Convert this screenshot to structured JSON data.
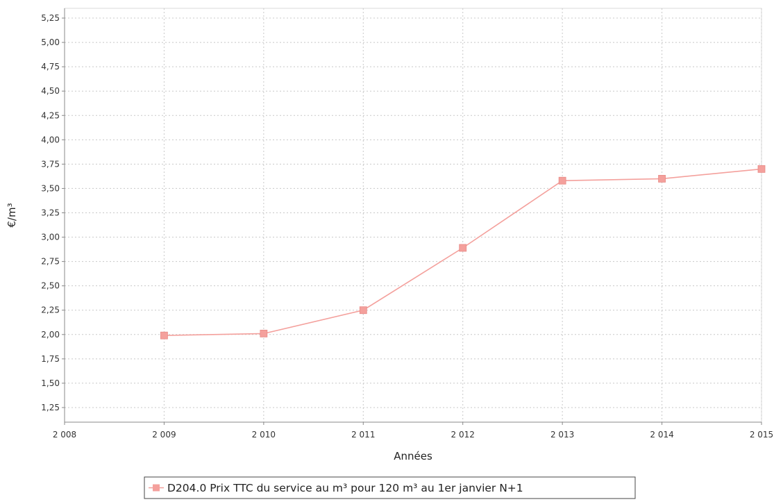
{
  "chart_data": {
    "type": "line",
    "title": "",
    "xlabel": "Années",
    "ylabel": "€/m³",
    "xlim": [
      2008,
      2015
    ],
    "ylim": [
      1.1,
      5.35
    ],
    "grid": true,
    "legend_position": "bottom",
    "x_ticks": [
      {
        "value": 2008,
        "label": "2 008"
      },
      {
        "value": 2009,
        "label": "2 009"
      },
      {
        "value": 2010,
        "label": "2 010"
      },
      {
        "value": 2011,
        "label": "2 011"
      },
      {
        "value": 2012,
        "label": "2 012"
      },
      {
        "value": 2013,
        "label": "2 013"
      },
      {
        "value": 2014,
        "label": "2 014"
      },
      {
        "value": 2015,
        "label": "2 015"
      }
    ],
    "y_ticks": [
      {
        "value": 1.25,
        "label": "1,25"
      },
      {
        "value": 1.5,
        "label": "1,50"
      },
      {
        "value": 1.75,
        "label": "1,75"
      },
      {
        "value": 2.0,
        "label": "2,00"
      },
      {
        "value": 2.25,
        "label": "2,25"
      },
      {
        "value": 2.5,
        "label": "2,50"
      },
      {
        "value": 2.75,
        "label": "2,75"
      },
      {
        "value": 3.0,
        "label": "3,00"
      },
      {
        "value": 3.25,
        "label": "3,25"
      },
      {
        "value": 3.5,
        "label": "3,50"
      },
      {
        "value": 3.75,
        "label": "3,75"
      },
      {
        "value": 4.0,
        "label": "4,00"
      },
      {
        "value": 4.25,
        "label": "4,25"
      },
      {
        "value": 4.5,
        "label": "4,50"
      },
      {
        "value": 4.75,
        "label": "4,75"
      },
      {
        "value": 5.0,
        "label": "5,00"
      },
      {
        "value": 5.25,
        "label": "5,25"
      }
    ],
    "series": [
      {
        "name": "D204.0 Prix TTC du service au m³ pour 120 m³ au 1er janvier N+1",
        "color": "#f4a09c",
        "marker": "square",
        "x": [
          2009,
          2010,
          2011,
          2012,
          2013,
          2014,
          2015
        ],
        "values": [
          1.99,
          2.01,
          2.25,
          2.89,
          3.58,
          3.6,
          3.7
        ]
      }
    ]
  }
}
